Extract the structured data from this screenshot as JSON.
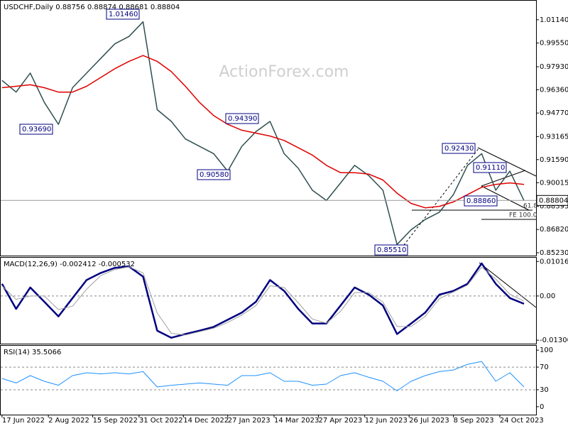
{
  "chart_data": [
    {
      "type": "line",
      "title": "USDCHF,Daily  0.88756 0.88874 0.88681 0.88804",
      "watermark": "ActionForex.com",
      "x": [
        "2022-06-17",
        "2022-07-01",
        "2022-07-15",
        "2022-07-29",
        "2022-08-12",
        "2022-08-26",
        "2022-09-09",
        "2022-09-23",
        "2022-10-07",
        "2022-10-21",
        "2022-11-04",
        "2022-11-18",
        "2022-12-02",
        "2022-12-16",
        "2022-12-30",
        "2023-01-13",
        "2023-01-27",
        "2023-02-10",
        "2023-02-24",
        "2023-03-10",
        "2023-03-24",
        "2023-04-07",
        "2023-04-21",
        "2023-05-05",
        "2023-05-19",
        "2023-06-02",
        "2023-06-16",
        "2023-06-30",
        "2023-07-14",
        "2023-07-28",
        "2023-08-11",
        "2023-08-25",
        "2023-09-08",
        "2023-09-22",
        "2023-10-06",
        "2023-10-20",
        "2023-11-03",
        "2023-11-17"
      ],
      "xlim": [
        "2022-06-15",
        "2023-11-29"
      ],
      "xticks": [
        {
          "value": "2022-06-17",
          "label": "17 Jun 2022"
        },
        {
          "value": "2022-08-02",
          "label": "2 Aug 2022"
        },
        {
          "value": "2022-09-15",
          "label": "15 Sep 2022"
        },
        {
          "value": "2022-10-31",
          "label": "31 Oct 2022"
        },
        {
          "value": "2022-12-14",
          "label": "14 Dec 2022"
        },
        {
          "value": "2023-01-27",
          "label": "27 Jan 2023"
        },
        {
          "value": "2023-03-14",
          "label": "14 Mar 2023"
        },
        {
          "value": "2023-04-27",
          "label": "27 Apr 2023"
        },
        {
          "value": "2023-06-12",
          "label": "12 Jun 2023"
        },
        {
          "value": "2023-07-26",
          "label": "26 Jul 2023"
        },
        {
          "value": "2023-09-08",
          "label": "8 Sep 2023"
        },
        {
          "value": "2023-10-24",
          "label": "24 Oct 2023"
        }
      ],
      "series": [
        {
          "color": "#2f4f4f",
          "values": [
            0.97,
            0.962,
            0.975,
            0.955,
            0.94,
            0.965,
            0.975,
            0.985,
            0.995,
            1.0,
            1.01,
            0.95,
            0.942,
            0.93,
            0.925,
            0.92,
            0.908,
            0.925,
            0.935,
            0.942,
            0.92,
            0.91,
            0.895,
            0.888,
            0.9,
            0.912,
            0.905,
            0.895,
            0.858,
            0.868,
            0.875,
            0.88,
            0.892,
            0.912,
            0.92,
            0.895,
            0.908,
            0.888
          ]
        },
        {
          "color": "#e00000",
          "values": [
            0.965,
            0.966,
            0.967,
            0.965,
            0.962,
            0.962,
            0.966,
            0.972,
            0.978,
            0.983,
            0.987,
            0.983,
            0.976,
            0.966,
            0.955,
            0.946,
            0.94,
            0.936,
            0.934,
            0.932,
            0.929,
            0.924,
            0.919,
            0.912,
            0.907,
            0.907,
            0.906,
            0.902,
            0.893,
            0.886,
            0.883,
            0.884,
            0.887,
            0.892,
            0.897,
            0.899,
            0.9,
            0.899
          ]
        }
      ],
      "ylim": [
        0.85037,
        1.02489
      ],
      "yticks": [
        {
          "value": 1.0114,
          "label": "1.01140"
        },
        {
          "value": 0.9955,
          "label": "0.99550"
        },
        {
          "value": 0.9793,
          "label": "0.97930"
        },
        {
          "value": 0.9636,
          "label": "0.96360"
        },
        {
          "value": 0.9477,
          "label": "0.94770"
        },
        0.93165,
        {
          "value": 0.9159,
          "label": "0.91590"
        },
        0.90015,
        0.88395,
        {
          "value": 0.8682,
          "label": "0.86820"
        },
        {
          "value": 0.8523,
          "label": "0.85230"
        }
      ],
      "current_price": 0.88804,
      "annotations": [
        {
          "text": "1.01460",
          "boxed": true
        },
        {
          "text": "0.93690",
          "boxed": true
        },
        {
          "text": "0.94390",
          "boxed": true
        },
        {
          "text": "0.90580",
          "boxed": true
        },
        {
          "text": "0.92430",
          "boxed": true
        },
        {
          "text": "0.91110",
          "boxed": true
        },
        {
          "text": "0.88860",
          "boxed": true
        },
        {
          "text": "0.85510",
          "boxed": true
        },
        {
          "text": "61.8",
          "boxed": false
        },
        {
          "text": "FE 100.0",
          "boxed": false
        }
      ]
    },
    {
      "type": "line",
      "title": "MACD(12,26,9) -0.002412 -0.000532",
      "series": [
        {
          "color": "#000080",
          "width": 2.5,
          "values": [
            0.0036,
            -0.0038,
            0.0025,
            -0.0017,
            -0.006,
            -0.0006,
            0.0047,
            0.0068,
            0.0083,
            0.0087,
            0.0057,
            -0.0102,
            -0.0123,
            -0.0112,
            -0.0102,
            -0.0091,
            -0.007,
            -0.0049,
            -0.0017,
            0.0047,
            0.0015,
            -0.0038,
            -0.0081,
            -0.0081,
            -0.0028,
            0.0025,
            0.0004,
            -0.0028,
            -0.0112,
            -0.0081,
            -0.0049,
            0.0004,
            0.0015,
            0.0036,
            0.0096,
            0.0036,
            -0.0006,
            -0.0023
          ]
        },
        {
          "color": "#a0a0a0",
          "width": 1,
          "values": [
            0.003,
            -0.001,
            0.0,
            0.0,
            -0.004,
            -0.003,
            0.002,
            0.006,
            0.0078,
            0.0086,
            0.0068,
            -0.005,
            -0.011,
            -0.0115,
            -0.0105,
            -0.0095,
            -0.0078,
            -0.0056,
            -0.0028,
            0.003,
            0.0025,
            -0.002,
            -0.0068,
            -0.008,
            -0.0045,
            0.001,
            0.001,
            -0.0018,
            -0.009,
            -0.009,
            -0.006,
            -0.0008,
            0.0012,
            0.0032,
            0.0085,
            0.005,
            0.0005,
            -0.0015
          ]
        }
      ],
      "ylim": [
        -0.01403,
        0.01148
      ],
      "yticks": [
        0.010166,
        {
          "value": 0,
          "label": "0.00"
        },
        -0.013006
      ],
      "levels": [
        0
      ]
    },
    {
      "type": "line",
      "title": "RSI(14) 35.5066",
      "series": [
        {
          "color": "#1e90ff",
          "width": 1,
          "values": [
            50,
            42,
            55,
            45,
            38,
            55,
            60,
            58,
            60,
            58,
            62,
            35,
            38,
            40,
            42,
            40,
            38,
            55,
            55,
            60,
            45,
            45,
            38,
            40,
            55,
            60,
            52,
            45,
            28,
            45,
            55,
            62,
            65,
            75,
            80,
            45,
            60,
            35
          ]
        }
      ],
      "ylim": [
        -14,
        109
      ],
      "yticks": [
        100,
        70,
        30,
        0
      ],
      "levels": [
        30,
        70
      ]
    }
  ]
}
